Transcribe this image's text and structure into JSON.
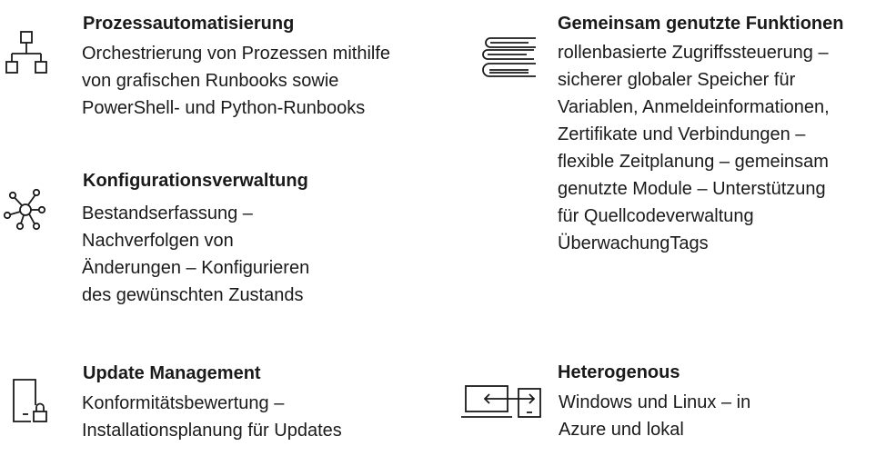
{
  "features": {
    "process_automation": {
      "icon": "flowchart-icon",
      "title": "Prozessautomatisierung",
      "lines": [
        "Orchestrierung von Prozessen mithilfe",
        "von grafischen Runbooks sowie",
        "PowerShell- und Python-Runbooks"
      ]
    },
    "configuration_management": {
      "icon": "network-hub-icon",
      "title": "Konfigurationsverwaltung",
      "lines": [
        "Bestandserfassung –",
        "Nachverfolgen von",
        "Änderungen – Konfigurieren",
        "des gewünschten Zustands"
      ]
    },
    "update_management": {
      "icon": "locked-document-icon",
      "title": "Update Management",
      "lines": [
        "Konformitätsbewertung –",
        "Installationsplanung für Updates"
      ]
    },
    "shared_functions": {
      "icon": "stacked-books-icon",
      "title": "Gemeinsam genutzte Funktionen",
      "lines": [
        "rollenbasierte Zugriffssteuerung –",
        "sicherer globaler Speicher für",
        "Variablen, Anmeldeinformationen,",
        "Zertifikate und Verbindungen –",
        "flexible Zeitplanung – gemeinsam",
        "genutzte Module – Unterstützung",
        "für Quellcodeverwaltung",
        "ÜberwachungTags"
      ]
    },
    "heterogenous": {
      "icon": "laptop-transfer-icon",
      "title": "Heterogenous",
      "lines": [
        "Windows und Linux – in",
        "Azure und lokal"
      ]
    }
  }
}
